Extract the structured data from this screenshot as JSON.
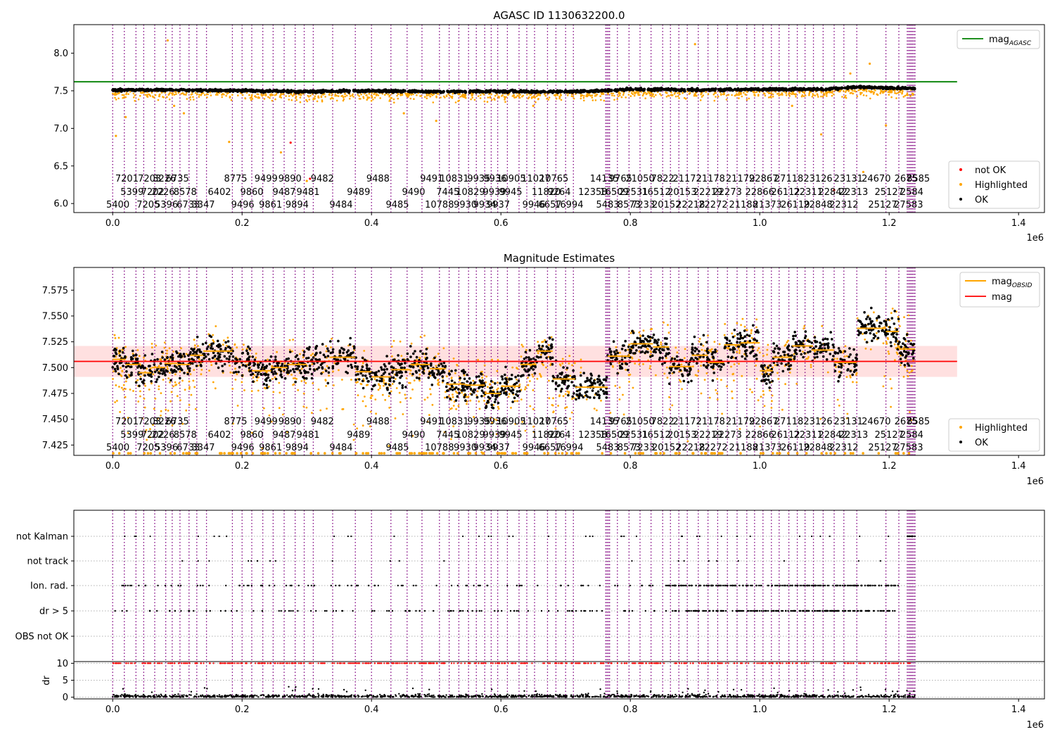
{
  "chart_data": [
    {
      "type": "scatter",
      "title": "AGASC ID 1130632200.0",
      "xlim": [
        -60000,
        1440000
      ],
      "ylim": [
        5.88,
        8.38
      ],
      "x_ticks": [
        0,
        200000,
        400000,
        600000,
        800000,
        1000000,
        1200000,
        1400000
      ],
      "x_tick_labels": [
        "0.0",
        "0.2",
        "0.4",
        "0.6",
        "0.8",
        "1.0",
        "1.2",
        "1.4"
      ],
      "x_offset_label": "1e6",
      "y_ticks": [
        6.0,
        6.5,
        7.0,
        7.5,
        8.0
      ],
      "y_tick_labels": [
        "6.0",
        "6.5",
        "7.0",
        "7.5",
        "8.0"
      ],
      "legend_top": "top-right",
      "legend_bottom": "bottom-right",
      "reference_lines": [
        {
          "name": "mag",
          "subscript": "AGASC",
          "y": 7.62,
          "x_range": [
            -60000,
            1305000
          ],
          "color": "#008000"
        }
      ],
      "series": [
        {
          "name": "not OK",
          "color": "#ff0000",
          "values": [
            [
              275000,
              6.81
            ],
            [
              305000,
              6.33
            ],
            [
              1115000,
              6.18
            ]
          ]
        },
        {
          "name": "Highlighted",
          "color": "#ffa500",
          "values": [
            [
              5000,
              6.9
            ],
            [
              20000,
              7.15
            ],
            [
              85000,
              8.17
            ],
            [
              95000,
              7.3
            ],
            [
              110000,
              7.2
            ],
            [
              180000,
              6.82
            ],
            [
              260000,
              6.68
            ],
            [
              300000,
              6.3
            ],
            [
              450000,
              7.2
            ],
            [
              500000,
              7.1
            ],
            [
              650000,
              7.3
            ],
            [
              900000,
              8.12
            ],
            [
              1050000,
              7.3
            ],
            [
              1140000,
              7.73
            ],
            [
              1170000,
              7.86
            ],
            [
              1160000,
              6.42
            ],
            [
              1095000,
              6.92
            ],
            [
              1195000,
              7.04
            ]
          ]
        },
        {
          "name": "OK",
          "color": "#000000",
          "values": [
            [
              0,
              7.51
            ],
            [
              100000,
              7.51
            ],
            [
              200000,
              7.5
            ],
            [
              300000,
              7.49
            ],
            [
              400000,
              7.5
            ],
            [
              500000,
              7.49
            ],
            [
              600000,
              7.49
            ],
            [
              700000,
              7.49
            ],
            [
              760000,
              7.5
            ],
            [
              800000,
              7.52
            ],
            [
              900000,
              7.51
            ],
            [
              1000000,
              7.52
            ],
            [
              1100000,
              7.52
            ],
            [
              1150000,
              7.55
            ],
            [
              1240000,
              7.53
            ]
          ]
        }
      ]
    },
    {
      "type": "scatter",
      "title": "Magnitude Estimates",
      "xlim": [
        -60000,
        1440000
      ],
      "ylim": [
        7.415,
        7.597
      ],
      "x_ticks": [
        0,
        200000,
        400000,
        600000,
        800000,
        1000000,
        1200000,
        1400000
      ],
      "x_tick_labels": [
        "0.0",
        "0.2",
        "0.4",
        "0.6",
        "0.8",
        "1.0",
        "1.2",
        "1.4"
      ],
      "x_offset_label": "1e6",
      "y_ticks": [
        7.425,
        7.45,
        7.475,
        7.5,
        7.525,
        7.55,
        7.575
      ],
      "y_tick_labels": [
        "7.425",
        "7.450",
        "7.475",
        "7.500",
        "7.525",
        "7.550",
        "7.575"
      ],
      "legend_top": "top-right",
      "legend_bottom": "bottom-right",
      "reference_lines": [
        {
          "name": "mag",
          "subscript": "",
          "y": 7.506,
          "band": [
            7.491,
            7.521
          ],
          "x_range": [
            -60000,
            1305000
          ],
          "color": "#ff0000"
        }
      ],
      "mag_obsid_name": "mag",
      "mag_obsid_subscript": "OBSID",
      "mag_obsid_color": "#ffa500",
      "series": [
        {
          "name": "Highlighted",
          "color": "#ffa500"
        },
        {
          "name": "OK",
          "color": "#000000"
        }
      ],
      "segments": [
        [
          0,
          20000,
          7.508
        ],
        [
          20000,
          40000,
          7.503
        ],
        [
          40000,
          60000,
          7.495
        ],
        [
          60000,
          80000,
          7.5
        ],
        [
          80000,
          100000,
          7.504
        ],
        [
          100000,
          120000,
          7.503
        ],
        [
          120000,
          140000,
          7.512
        ],
        [
          140000,
          185000,
          7.516
        ],
        [
          185000,
          215000,
          7.506
        ],
        [
          215000,
          245000,
          7.497
        ],
        [
          245000,
          270000,
          7.5
        ],
        [
          270000,
          300000,
          7.503
        ],
        [
          300000,
          335000,
          7.506
        ],
        [
          335000,
          375000,
          7.51
        ],
        [
          375000,
          400000,
          7.496
        ],
        [
          400000,
          430000,
          7.491
        ],
        [
          430000,
          460000,
          7.498
        ],
        [
          460000,
          490000,
          7.503
        ],
        [
          490000,
          515000,
          7.499
        ],
        [
          515000,
          545000,
          7.484
        ],
        [
          545000,
          575000,
          7.483
        ],
        [
          575000,
          600000,
          7.475
        ],
        [
          600000,
          630000,
          7.482
        ],
        [
          630000,
          655000,
          7.503
        ],
        [
          655000,
          680000,
          7.516
        ],
        [
          680000,
          715000,
          7.489
        ],
        [
          715000,
          765000,
          7.481
        ],
        [
          765000,
          800000,
          7.511
        ],
        [
          800000,
          835000,
          7.523
        ],
        [
          835000,
          860000,
          7.52
        ],
        [
          860000,
          895000,
          7.501
        ],
        [
          895000,
          920000,
          7.512
        ],
        [
          920000,
          945000,
          7.505
        ],
        [
          945000,
          970000,
          7.522
        ],
        [
          970000,
          1000000,
          7.524
        ],
        [
          1000000,
          1020000,
          7.497
        ],
        [
          1020000,
          1050000,
          7.51
        ],
        [
          1050000,
          1080000,
          7.521
        ],
        [
          1080000,
          1115000,
          7.517
        ],
        [
          1115000,
          1150000,
          7.505
        ],
        [
          1150000,
          1195000,
          7.538
        ],
        [
          1195000,
          1215000,
          7.535
        ],
        [
          1215000,
          1240000,
          7.518
        ]
      ]
    },
    {
      "type": "scatter",
      "title": "",
      "xlim": [
        -60000,
        1440000
      ],
      "x_ticks": [
        0,
        200000,
        400000,
        600000,
        800000,
        1000000,
        1200000,
        1400000
      ],
      "x_tick_labels": [
        "0.0",
        "0.2",
        "0.4",
        "0.6",
        "0.8",
        "1.0",
        "1.2",
        "1.4"
      ],
      "x_offset_label": "1e6",
      "ylabel": "dr",
      "dr_ylim": [
        -0.5,
        10.5
      ],
      "dr_ticks": [
        0,
        5,
        10
      ],
      "dr_tick_labels": [
        "0",
        "5",
        "10"
      ],
      "flag_rows": [
        "not Kalman",
        "not track",
        "Ion. rad.",
        "dr > 5",
        "OBS not OK"
      ],
      "flag_color": "#000000",
      "dr_clipped_color": "#ff0000",
      "dr_color": "#000000",
      "grid": "horizontal dotted"
    }
  ],
  "obsid_boundaries": [
    0,
    18000,
    36000,
    48000,
    65000,
    82000,
    92000,
    104000,
    118000,
    130000,
    145000,
    185000,
    200000,
    215000,
    232000,
    248000,
    265000,
    282000,
    296000,
    310000,
    340000,
    375000,
    400000,
    430000,
    455000,
    478000,
    505000,
    520000,
    535000,
    550000,
    562000,
    575000,
    585000,
    595000,
    610000,
    628000,
    640000,
    652000,
    672000,
    685000,
    700000,
    712000,
    762000,
    764000,
    766000,
    768000,
    780000,
    798000,
    815000,
    832000,
    850000,
    862000,
    875000,
    888000,
    905000,
    920000,
    935000,
    950000,
    965000,
    980000,
    992000,
    1005000,
    1018000,
    1030000,
    1045000,
    1058000,
    1070000,
    1083000,
    1098000,
    1115000,
    1130000,
    1150000,
    1195000,
    1215000,
    1228000,
    1230000,
    1232000,
    1234000,
    1236000,
    1238000,
    1240000
  ],
  "obsid_labels": {
    "row1": [
      [
        22000,
        "7201"
      ],
      [
        57000,
        "7203"
      ],
      [
        80000,
        "3226"
      ],
      [
        100000,
        "6735"
      ],
      [
        190000,
        "8775"
      ],
      [
        237000,
        "9499"
      ],
      [
        274000,
        "9890"
      ],
      [
        324000,
        "9482"
      ],
      [
        410000,
        "9488"
      ],
      [
        493000,
        "9491"
      ],
      [
        528000,
        "10831"
      ],
      [
        566000,
        "9935"
      ],
      [
        591000,
        "9936"
      ],
      [
        616000,
        "10905"
      ],
      [
        654000,
        "11027"
      ],
      [
        682000,
        "10765"
      ],
      [
        760000,
        "14135"
      ],
      [
        785000,
        "9765"
      ],
      [
        815000,
        "21050"
      ],
      [
        850000,
        "7822"
      ],
      [
        888000,
        "21172"
      ],
      [
        924000,
        "21178"
      ],
      [
        970000,
        "21179"
      ],
      [
        1006000,
        "22867"
      ],
      [
        1045000,
        "27118"
      ],
      [
        1090000,
        "23126"
      ],
      [
        1137000,
        "23131"
      ],
      [
        1180000,
        "24670"
      ],
      [
        1226000,
        "2675"
      ],
      [
        1245000,
        "8585"
      ]
    ],
    "row2": [
      [
        30000,
        "5399"
      ],
      [
        62000,
        "7202"
      ],
      [
        78000,
        "2226"
      ],
      [
        112000,
        "8578"
      ],
      [
        165000,
        "6402"
      ],
      [
        215000,
        "9860"
      ],
      [
        265000,
        "9487"
      ],
      [
        302000,
        "9481"
      ],
      [
        380000,
        "9489"
      ],
      [
        465000,
        "9490"
      ],
      [
        518000,
        "7445"
      ],
      [
        553000,
        "10829"
      ],
      [
        590000,
        "9939"
      ],
      [
        615000,
        "9945"
      ],
      [
        670000,
        "11820"
      ],
      [
        690000,
        "9264"
      ],
      [
        742000,
        "12358"
      ],
      [
        775000,
        "16509"
      ],
      [
        805000,
        "22531"
      ],
      [
        840000,
        "16512"
      ],
      [
        880000,
        "20153"
      ],
      [
        920000,
        "22219"
      ],
      [
        950000,
        "22273"
      ],
      [
        1000000,
        "22866"
      ],
      [
        1040000,
        "26112"
      ],
      [
        1075000,
        "22311"
      ],
      [
        1113000,
        "22842"
      ],
      [
        1145000,
        "22313"
      ],
      [
        1200000,
        "25127"
      ],
      [
        1235000,
        "2584"
      ]
    ],
    "row3": [
      [
        8000,
        "5400"
      ],
      [
        55000,
        "7205"
      ],
      [
        83000,
        "5396"
      ],
      [
        117000,
        "6733"
      ],
      [
        140000,
        "3347"
      ],
      [
        201000,
        "9496"
      ],
      [
        244000,
        "9861"
      ],
      [
        285000,
        "9894"
      ],
      [
        353000,
        "9484"
      ],
      [
        440000,
        "9485"
      ],
      [
        505000,
        "10788"
      ],
      [
        545000,
        "9930"
      ],
      [
        575000,
        "9934"
      ],
      [
        596000,
        "9937"
      ],
      [
        651000,
        "9946"
      ],
      [
        676000,
        "6657"
      ],
      [
        705000,
        "16994"
      ],
      [
        765000,
        "5483"
      ],
      [
        798000,
        "8573"
      ],
      [
        820000,
        "7233"
      ],
      [
        856000,
        "20152"
      ],
      [
        893000,
        "22218"
      ],
      [
        928000,
        "22272"
      ],
      [
        975000,
        "21188"
      ],
      [
        1012000,
        "21373"
      ],
      [
        1055000,
        "26119"
      ],
      [
        1090000,
        "22848"
      ],
      [
        1130000,
        "22312"
      ],
      [
        1190000,
        "25127"
      ],
      [
        1230000,
        "27583"
      ]
    ]
  }
}
